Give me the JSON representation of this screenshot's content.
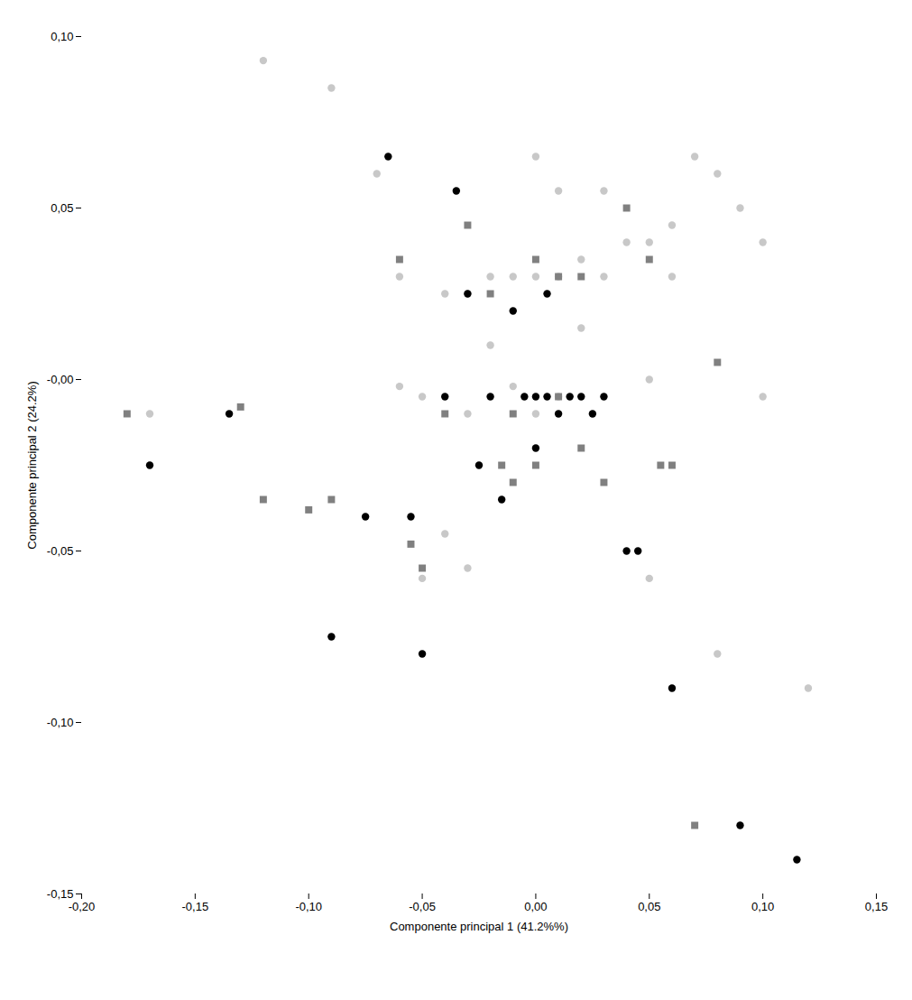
{
  "chart_data": {
    "type": "scatter",
    "xlabel": "Componente principal 1 (41.2%%)",
    "ylabel": "Componente principal 2 (24.2%)",
    "xlim": [
      -0.2,
      0.15
    ],
    "ylim": [
      -0.15,
      0.1
    ],
    "xticks": [
      {
        "value": -0.2,
        "label": "-0,20"
      },
      {
        "value": -0.15,
        "label": "-0,15"
      },
      {
        "value": -0.1,
        "label": "-0,10"
      },
      {
        "value": -0.05,
        "label": "-0,05"
      },
      {
        "value": 0.0,
        "label": "0,00"
      },
      {
        "value": 0.05,
        "label": "0,05"
      },
      {
        "value": 0.1,
        "label": "0,10"
      },
      {
        "value": 0.15,
        "label": "0,15"
      }
    ],
    "yticks": [
      {
        "value": -0.15,
        "label": "-0,15"
      },
      {
        "value": -0.1,
        "label": "-0,10"
      },
      {
        "value": -0.05,
        "label": "-0,05"
      },
      {
        "value": -0.0,
        "label": "-0,00"
      },
      {
        "value": 0.05,
        "label": "0,05"
      },
      {
        "value": 0.1,
        "label": "0,10"
      }
    ],
    "grid": false,
    "series": [
      {
        "color": "#c8c8c8",
        "marker": "circle",
        "values": [
          [
            -0.17,
            -0.01
          ],
          [
            -0.12,
            0.093
          ],
          [
            -0.09,
            0.085
          ],
          [
            -0.07,
            0.06
          ],
          [
            -0.06,
            0.03
          ],
          [
            -0.06,
            -0.002
          ],
          [
            -0.05,
            -0.005
          ],
          [
            -0.05,
            -0.058
          ],
          [
            -0.04,
            0.025
          ],
          [
            -0.04,
            -0.045
          ],
          [
            -0.03,
            0.025
          ],
          [
            -0.03,
            -0.01
          ],
          [
            -0.03,
            -0.055
          ],
          [
            -0.02,
            0.03
          ],
          [
            -0.02,
            0.01
          ],
          [
            -0.01,
            0.03
          ],
          [
            -0.01,
            -0.002
          ],
          [
            0.0,
            0.065
          ],
          [
            0.0,
            0.03
          ],
          [
            0.0,
            -0.01
          ],
          [
            0.01,
            0.055
          ],
          [
            0.01,
            0.03
          ],
          [
            0.01,
            -0.005
          ],
          [
            0.02,
            0.035
          ],
          [
            0.02,
            0.015
          ],
          [
            0.03,
            0.055
          ],
          [
            0.03,
            0.03
          ],
          [
            0.04,
            0.04
          ],
          [
            0.05,
            0.04
          ],
          [
            0.05,
            0.0
          ],
          [
            0.05,
            -0.058
          ],
          [
            0.06,
            0.045
          ],
          [
            0.06,
            0.03
          ],
          [
            0.07,
            0.065
          ],
          [
            0.08,
            0.06
          ],
          [
            0.08,
            -0.08
          ],
          [
            0.09,
            0.05
          ],
          [
            0.1,
            0.04
          ],
          [
            0.1,
            -0.005
          ],
          [
            0.12,
            -0.09
          ]
        ]
      },
      {
        "color": "#808080",
        "marker": "square",
        "values": [
          [
            -0.18,
            -0.01
          ],
          [
            -0.13,
            -0.008
          ],
          [
            -0.12,
            -0.035
          ],
          [
            -0.1,
            -0.038
          ],
          [
            -0.09,
            -0.035
          ],
          [
            -0.06,
            0.035
          ],
          [
            -0.055,
            -0.048
          ],
          [
            -0.05,
            -0.055
          ],
          [
            -0.04,
            -0.01
          ],
          [
            -0.03,
            0.045
          ],
          [
            -0.02,
            0.025
          ],
          [
            -0.015,
            -0.025
          ],
          [
            -0.01,
            -0.01
          ],
          [
            -0.01,
            -0.03
          ],
          [
            0.0,
            -0.025
          ],
          [
            0.0,
            0.035
          ],
          [
            0.01,
            0.03
          ],
          [
            0.01,
            -0.005
          ],
          [
            0.02,
            0.03
          ],
          [
            0.02,
            -0.02
          ],
          [
            0.03,
            -0.03
          ],
          [
            0.04,
            0.05
          ],
          [
            0.05,
            0.035
          ],
          [
            0.055,
            -0.025
          ],
          [
            0.06,
            -0.025
          ],
          [
            0.07,
            -0.13
          ],
          [
            0.08,
            0.005
          ]
        ]
      },
      {
        "color": "#000000",
        "marker": "circle",
        "values": [
          [
            -0.17,
            -0.025
          ],
          [
            -0.135,
            -0.01
          ],
          [
            -0.09,
            -0.075
          ],
          [
            -0.075,
            -0.04
          ],
          [
            -0.065,
            0.065
          ],
          [
            -0.055,
            -0.04
          ],
          [
            -0.05,
            -0.08
          ],
          [
            -0.04,
            -0.005
          ],
          [
            -0.035,
            0.055
          ],
          [
            -0.03,
            0.025
          ],
          [
            -0.025,
            -0.025
          ],
          [
            -0.02,
            -0.005
          ],
          [
            -0.015,
            -0.035
          ],
          [
            -0.01,
            0.02
          ],
          [
            -0.005,
            -0.005
          ],
          [
            0.0,
            -0.005
          ],
          [
            0.0,
            -0.02
          ],
          [
            0.005,
            0.025
          ],
          [
            0.005,
            -0.005
          ],
          [
            0.01,
            -0.01
          ],
          [
            0.015,
            -0.005
          ],
          [
            0.02,
            -0.005
          ],
          [
            0.025,
            -0.01
          ],
          [
            0.03,
            -0.005
          ],
          [
            0.04,
            -0.05
          ],
          [
            0.045,
            -0.05
          ],
          [
            0.06,
            -0.09
          ],
          [
            0.09,
            -0.13
          ],
          [
            0.115,
            -0.14
          ]
        ]
      }
    ]
  }
}
